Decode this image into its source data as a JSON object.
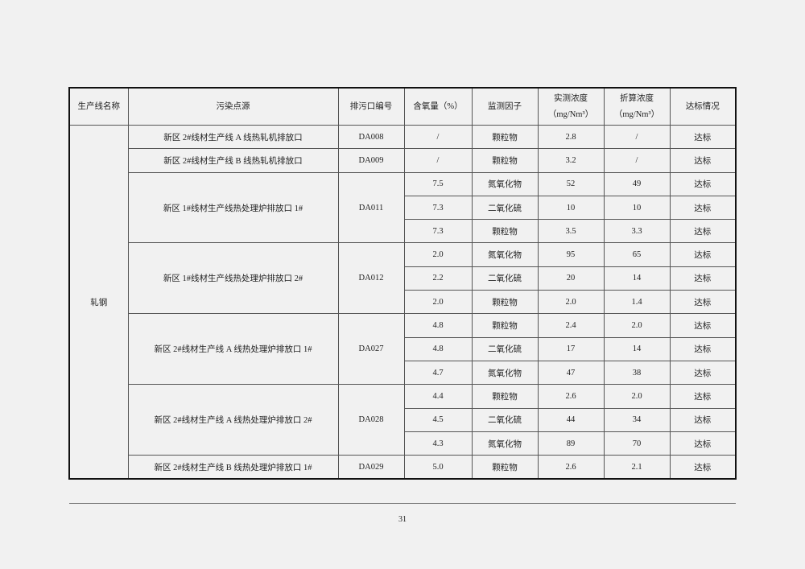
{
  "table": {
    "headers": [
      "生产线名称",
      "污染点源",
      "排污口编号",
      "含氧量（%）",
      "监测因子",
      "实测浓度",
      "折算浓度",
      "达标情况"
    ],
    "header_units": {
      "measured": "（mg/Nm³）",
      "converted": "（mg/Nm³）"
    },
    "line_name": "轧钢",
    "groups": [
      {
        "source": "新区 2#线材生产线 A 线热轧机排放口",
        "outlet": "DA008",
        "rows": [
          [
            "/",
            "颗粒物",
            "2.8",
            "/",
            "达标"
          ]
        ]
      },
      {
        "source": "新区 2#线材生产线 B 线热轧机排放口",
        "outlet": "DA009",
        "rows": [
          [
            "/",
            "颗粒物",
            "3.2",
            "/",
            "达标"
          ]
        ]
      },
      {
        "source": "新区 1#线材生产线热处理炉排放口 1#",
        "outlet": "DA011",
        "rows": [
          [
            "7.5",
            "氮氧化物",
            "52",
            "49",
            "达标"
          ],
          [
            "7.3",
            "二氧化硫",
            "10",
            "10",
            "达标"
          ],
          [
            "7.3",
            "颗粒物",
            "3.5",
            "3.3",
            "达标"
          ]
        ]
      },
      {
        "source": "新区 1#线材生产线热处理炉排放口 2#",
        "outlet": "DA012",
        "rows": [
          [
            "2.0",
            "氮氧化物",
            "95",
            "65",
            "达标"
          ],
          [
            "2.2",
            "二氧化硫",
            "20",
            "14",
            "达标"
          ],
          [
            "2.0",
            "颗粒物",
            "2.0",
            "1.4",
            "达标"
          ]
        ]
      },
      {
        "source": "新区 2#线材生产线 A 线热处理炉排放口 1#",
        "outlet": "DA027",
        "rows": [
          [
            "4.8",
            "颗粒物",
            "2.4",
            "2.0",
            "达标"
          ],
          [
            "4.8",
            "二氧化硫",
            "17",
            "14",
            "达标"
          ],
          [
            "4.7",
            "氮氧化物",
            "47",
            "38",
            "达标"
          ]
        ]
      },
      {
        "source": "新区 2#线材生产线 A 线热处理炉排放口 2#",
        "outlet": "DA028",
        "rows": [
          [
            "4.4",
            "颗粒物",
            "2.6",
            "2.0",
            "达标"
          ],
          [
            "4.5",
            "二氧化硫",
            "44",
            "34",
            "达标"
          ],
          [
            "4.3",
            "氮氧化物",
            "89",
            "70",
            "达标"
          ]
        ]
      },
      {
        "source": "新区 2#线材生产线 B 线热处理炉排放口 1#",
        "outlet": "DA029",
        "rows": [
          [
            "5.0",
            "颗粒物",
            "2.6",
            "2.1",
            "达标"
          ]
        ]
      }
    ]
  },
  "page_number": "31"
}
